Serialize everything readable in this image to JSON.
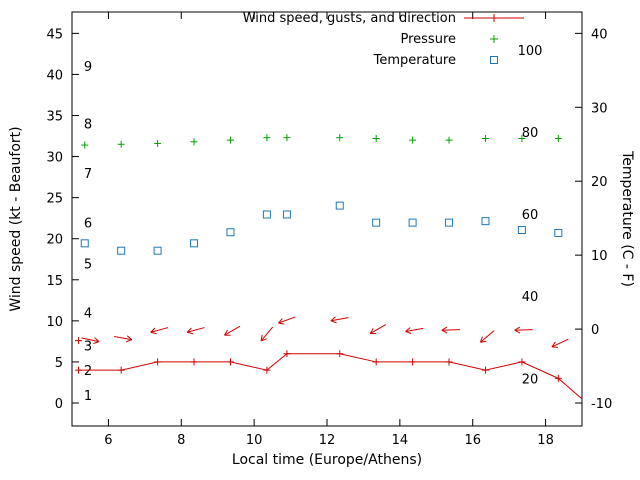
{
  "chart_data": {
    "type": "line",
    "title": "",
    "xlabel": "Local time (Europe/Athens)",
    "ylabel_left": "Wind speed (kt - Beaufort)",
    "ylabel_right": "Temperature (C - F)",
    "grid": false,
    "x_axis": {
      "ticks": [
        6,
        8,
        10,
        12,
        14,
        16,
        18
      ],
      "range": [
        5,
        19
      ]
    },
    "left_axis": {
      "unit": "kt",
      "ticks": [
        0,
        5,
        10,
        15,
        20,
        25,
        30,
        35,
        40,
        45
      ],
      "range": [
        -2.8,
        47.6
      ],
      "beaufort": [
        {
          "label": "1",
          "kt": 1
        },
        {
          "label": "2",
          "kt": 4
        },
        {
          "label": "3",
          "kt": 7
        },
        {
          "label": "4",
          "kt": 11
        },
        {
          "label": "5",
          "kt": 17
        },
        {
          "label": "6",
          "kt": 22
        },
        {
          "label": "7",
          "kt": 28
        },
        {
          "label": "8",
          "kt": 34
        },
        {
          "label": "9",
          "kt": 41
        }
      ]
    },
    "right_axis": {
      "unit": "C",
      "ticks_c": [
        -10,
        0,
        10,
        20,
        30,
        40
      ],
      "fahrenheit": [
        {
          "label": "20",
          "f": 20
        },
        {
          "label": "40",
          "f": 40
        },
        {
          "label": "60",
          "f": 60
        },
        {
          "label": "80",
          "f": 80
        },
        {
          "label": "100",
          "f": 100
        }
      ]
    },
    "legend": {
      "position": "top-right-inside",
      "row_y": [
        18,
        39,
        60
      ],
      "entries": [
        {
          "label": "Wind speed, gusts, and direction",
          "marker": "line-plus",
          "color": "#d00000"
        },
        {
          "label": "Pressure",
          "marker": "plus",
          "color": "#00a000"
        },
        {
          "label": "Temperature",
          "marker": "square",
          "color": "#1f78b4"
        }
      ]
    },
    "series": {
      "wind_speed": {
        "name": "Wind speed (kt)",
        "color": "#d00000",
        "x": [
          5.18,
          6.35,
          7.35,
          8.35,
          9.35,
          10.35,
          10.9,
          12.35,
          13.35,
          14.35,
          15.35,
          16.35,
          17.35,
          18.35,
          19.0
        ],
        "kt": [
          4,
          4,
          5,
          5,
          5,
          4,
          6,
          6,
          5,
          5,
          5,
          4,
          5,
          3,
          0.5
        ]
      },
      "gusts_direction": {
        "name": "Gusts and wind direction",
        "color": "#d00000",
        "plus_points": [
          {
            "x": 5.18,
            "kt": 7.6
          }
        ],
        "arrows": [
          {
            "x": 5.5,
            "kt": 7.7,
            "dir": -12
          },
          {
            "x": 6.4,
            "kt": 7.9,
            "dir": -10
          },
          {
            "x": 7.4,
            "kt": 8.9,
            "dir": 195
          },
          {
            "x": 8.4,
            "kt": 8.9,
            "dir": 195
          },
          {
            "x": 9.4,
            "kt": 8.8,
            "dir": 210
          },
          {
            "x": 10.35,
            "kt": 8.4,
            "dir": 230
          },
          {
            "x": 10.9,
            "kt": 10.1,
            "dir": 200
          },
          {
            "x": 12.35,
            "kt": 10.2,
            "dir": 190
          },
          {
            "x": 13.4,
            "kt": 9.0,
            "dir": 210
          },
          {
            "x": 14.4,
            "kt": 8.9,
            "dir": 190
          },
          {
            "x": 15.4,
            "kt": 8.9,
            "dir": 182
          },
          {
            "x": 16.4,
            "kt": 8.1,
            "dir": 220
          },
          {
            "x": 17.4,
            "kt": 8.9,
            "dir": 182
          },
          {
            "x": 18.4,
            "kt": 7.3,
            "dir": 205
          }
        ]
      },
      "pressure": {
        "name": "Pressure",
        "color": "#00a000",
        "x": [
          5.35,
          6.35,
          7.35,
          8.35,
          9.35,
          10.35,
          10.9,
          12.35,
          13.35,
          14.35,
          15.35,
          16.35,
          17.35,
          18.35
        ],
        "kt_scale": [
          31.4,
          31.5,
          31.6,
          31.8,
          32.0,
          32.3,
          32.3,
          32.3,
          32.2,
          32.0,
          32.0,
          32.2,
          32.2,
          32.2
        ]
      },
      "temperature": {
        "name": "Temperature (C)",
        "color": "#1f78b4",
        "x": [
          5.35,
          6.35,
          7.35,
          8.35,
          9.35,
          10.35,
          10.9,
          12.35,
          13.35,
          14.35,
          15.35,
          16.35,
          17.35,
          18.35
        ],
        "c": [
          11.6,
          10.6,
          10.6,
          11.6,
          13.1,
          15.5,
          15.5,
          16.7,
          14.4,
          14.4,
          14.4,
          14.6,
          13.4,
          13.0
        ]
      }
    }
  }
}
